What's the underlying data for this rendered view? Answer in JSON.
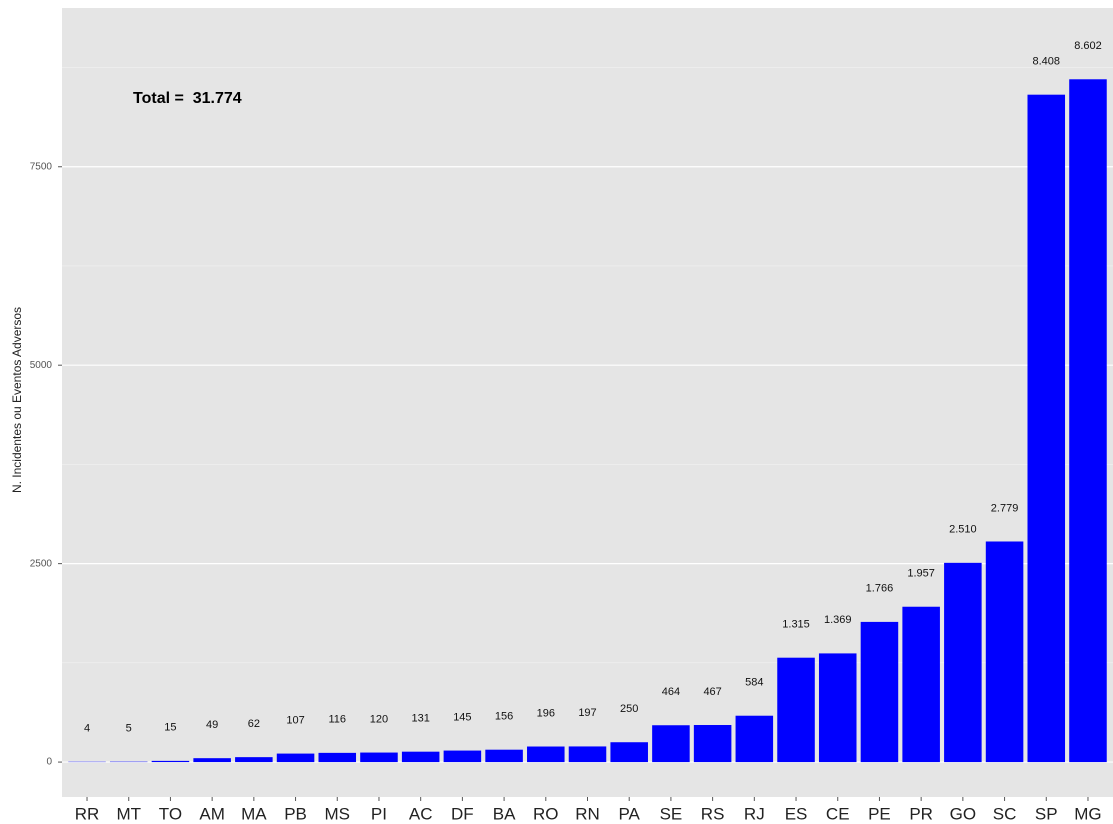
{
  "chart_data": {
    "type": "bar",
    "y_label": "N. Incidentes ou Eventos Adversos",
    "annotation": "Total =  31.774",
    "categories": [
      "RR",
      "MT",
      "TO",
      "AM",
      "MA",
      "PB",
      "MS",
      "PI",
      "AC",
      "DF",
      "BA",
      "RO",
      "RN",
      "PA",
      "SE",
      "RS",
      "RJ",
      "ES",
      "CE",
      "PE",
      "PR",
      "GO",
      "SC",
      "SP",
      "MG"
    ],
    "values": [
      4,
      5,
      15,
      49,
      62,
      107,
      116,
      120,
      131,
      145,
      156,
      196,
      197,
      250,
      464,
      467,
      584,
      1315,
      1369,
      1766,
      1957,
      2510,
      2779,
      8408,
      8602
    ],
    "value_labels": [
      "4",
      "5",
      "15",
      "49",
      "62",
      "107",
      "116",
      "120",
      "131",
      "145",
      "156",
      "196",
      "197",
      "250",
      "464",
      "467",
      "584",
      "1.315",
      "1.369",
      "1.766",
      "1.957",
      "2.510",
      "2.779",
      "8.408",
      "8.602"
    ],
    "color": "#0000ff",
    "ylim": [
      -440,
      9500
    ],
    "yticks": [
      0,
      2500,
      5000,
      7500
    ],
    "yticks_minor": [
      1250,
      3750,
      6250,
      8750
    ],
    "grid": true
  }
}
